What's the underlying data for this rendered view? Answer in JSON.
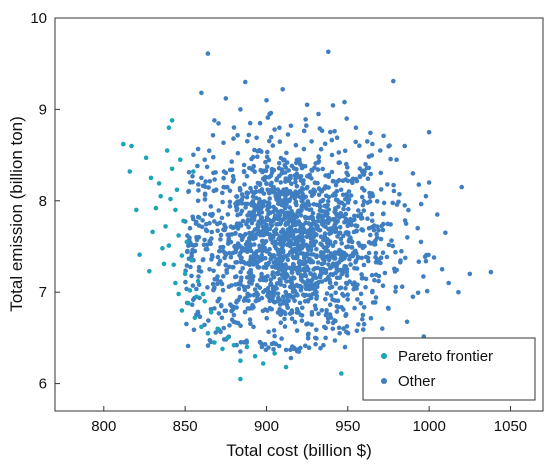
{
  "chart_data": {
    "type": "scatter",
    "title": "",
    "xlabel": "Total cost (billion $)",
    "ylabel": "Total emission (billion ton)",
    "xlim": [
      770,
      1070
    ],
    "ylim": [
      5.7,
      10.0
    ],
    "xticks": [
      800,
      850,
      900,
      950,
      1000,
      1050
    ],
    "yticks": [
      6,
      7,
      8,
      9,
      10
    ],
    "grid": false,
    "legend": "bottom-right",
    "series": [
      {
        "name": "Pareto frontier",
        "color": "#1aa6b7",
        "points": [
          [
            812,
            8.62
          ],
          [
            817,
            8.6
          ],
          [
            816,
            8.32
          ],
          [
            820,
            7.9
          ],
          [
            822,
            7.41
          ],
          [
            826,
            8.47
          ],
          [
            829,
            8.25
          ],
          [
            830,
            7.66
          ],
          [
            832,
            7.92
          ],
          [
            834,
            8.19
          ],
          [
            835,
            8.05
          ],
          [
            836,
            7.48
          ],
          [
            837,
            7.31
          ],
          [
            838,
            7.72
          ],
          [
            839,
            8.55
          ],
          [
            840,
            8.8
          ],
          [
            840,
            7.51
          ],
          [
            841,
            8.02
          ],
          [
            842,
            8.35
          ],
          [
            843,
            7.3
          ],
          [
            844,
            7.9
          ],
          [
            844,
            7.1
          ],
          [
            845,
            8.12
          ],
          [
            846,
            7.62
          ],
          [
            846,
            6.98
          ],
          [
            847,
            8.45
          ],
          [
            848,
            7.4
          ],
          [
            848,
            6.8
          ],
          [
            849,
            7.78
          ],
          [
            850,
            7.2
          ],
          [
            851,
            7.55
          ],
          [
            852,
            6.88
          ],
          [
            853,
            7.02
          ],
          [
            854,
            7.35
          ],
          [
            856,
            6.72
          ],
          [
            857,
            6.95
          ],
          [
            858,
            7.12
          ],
          [
            860,
            6.62
          ],
          [
            862,
            6.9
          ],
          [
            864,
            6.55
          ],
          [
            866,
            6.78
          ],
          [
            868,
            6.45
          ],
          [
            870,
            6.6
          ],
          [
            873,
            6.38
          ],
          [
            876,
            6.5
          ],
          [
            880,
            6.42
          ],
          [
            884,
            6.25
          ],
          [
            888,
            6.4
          ],
          [
            893,
            6.3
          ],
          [
            898,
            6.22
          ],
          [
            905,
            6.33
          ],
          [
            912,
            6.18
          ],
          [
            884,
            6.05
          ],
          [
            946,
            6.11
          ],
          [
            842,
            8.88
          ],
          [
            828,
            7.23
          ],
          [
            855,
            8.32
          ],
          [
            861,
            6.98
          ]
        ]
      },
      {
        "name": "Other",
        "color": "#3f7fc1",
        "points": [
          [
            864,
            9.61
          ],
          [
            938,
            9.63
          ],
          [
            978,
            9.31
          ],
          [
            887,
            9.3
          ],
          [
            910,
            9.22
          ],
          [
            860,
            9.18
          ],
          [
            875,
            9.12
          ],
          [
            900,
            9.1
          ],
          [
            925,
            9.05
          ],
          [
            948,
            9.08
          ],
          [
            884,
            9.0
          ],
          [
            932,
            8.95
          ],
          [
            1000,
            8.75
          ],
          [
            868,
            8.88
          ],
          [
            890,
            8.85
          ],
          [
            915,
            8.82
          ],
          [
            955,
            8.8
          ],
          [
            972,
            8.71
          ],
          [
            905,
            8.78
          ],
          [
            985,
            8.6
          ],
          [
            1020,
            8.15
          ],
          [
            1038,
            7.22
          ],
          [
            1025,
            7.2
          ],
          [
            1012,
            7.1
          ],
          [
            1003,
            7.38
          ],
          [
            1018,
            7.0
          ],
          [
            995,
            7.55
          ],
          [
            1008,
            7.25
          ],
          [
            990,
            6.95
          ],
          [
            975,
            6.82
          ],
          [
            960,
            6.65
          ],
          [
            945,
            6.55
          ],
          [
            935,
            6.42
          ],
          [
            920,
            6.35
          ],
          [
            930,
            6.5
          ],
          [
            915,
            6.28
          ],
          [
            905,
            6.52
          ],
          [
            892,
            6.62
          ],
          [
            880,
            6.75
          ],
          [
            870,
            6.9
          ],
          [
            855,
            7.8
          ],
          [
            858,
            8.0
          ],
          [
            860,
            8.25
          ],
          [
            862,
            8.45
          ],
          [
            857,
            7.6
          ],
          [
            856,
            7.45
          ],
          [
            865,
            7.25
          ],
          [
            868,
            7.05
          ],
          [
            852,
            8.1
          ],
          [
            853,
            7.7
          ],
          [
            990,
            8.3
          ],
          [
            998,
            8.05
          ],
          [
            1005,
            7.85
          ],
          [
            1010,
            7.65
          ],
          [
            980,
            8.45
          ],
          [
            970,
            8.55
          ],
          [
            962,
            8.65
          ],
          [
            985,
            7.95
          ],
          [
            1000,
            8.2
          ],
          [
            993,
            7.7
          ]
        ],
        "cluster": {
          "count": 1800,
          "center": [
            915,
            7.55
          ],
          "spread": [
            30,
            0.52
          ]
        }
      }
    ]
  }
}
